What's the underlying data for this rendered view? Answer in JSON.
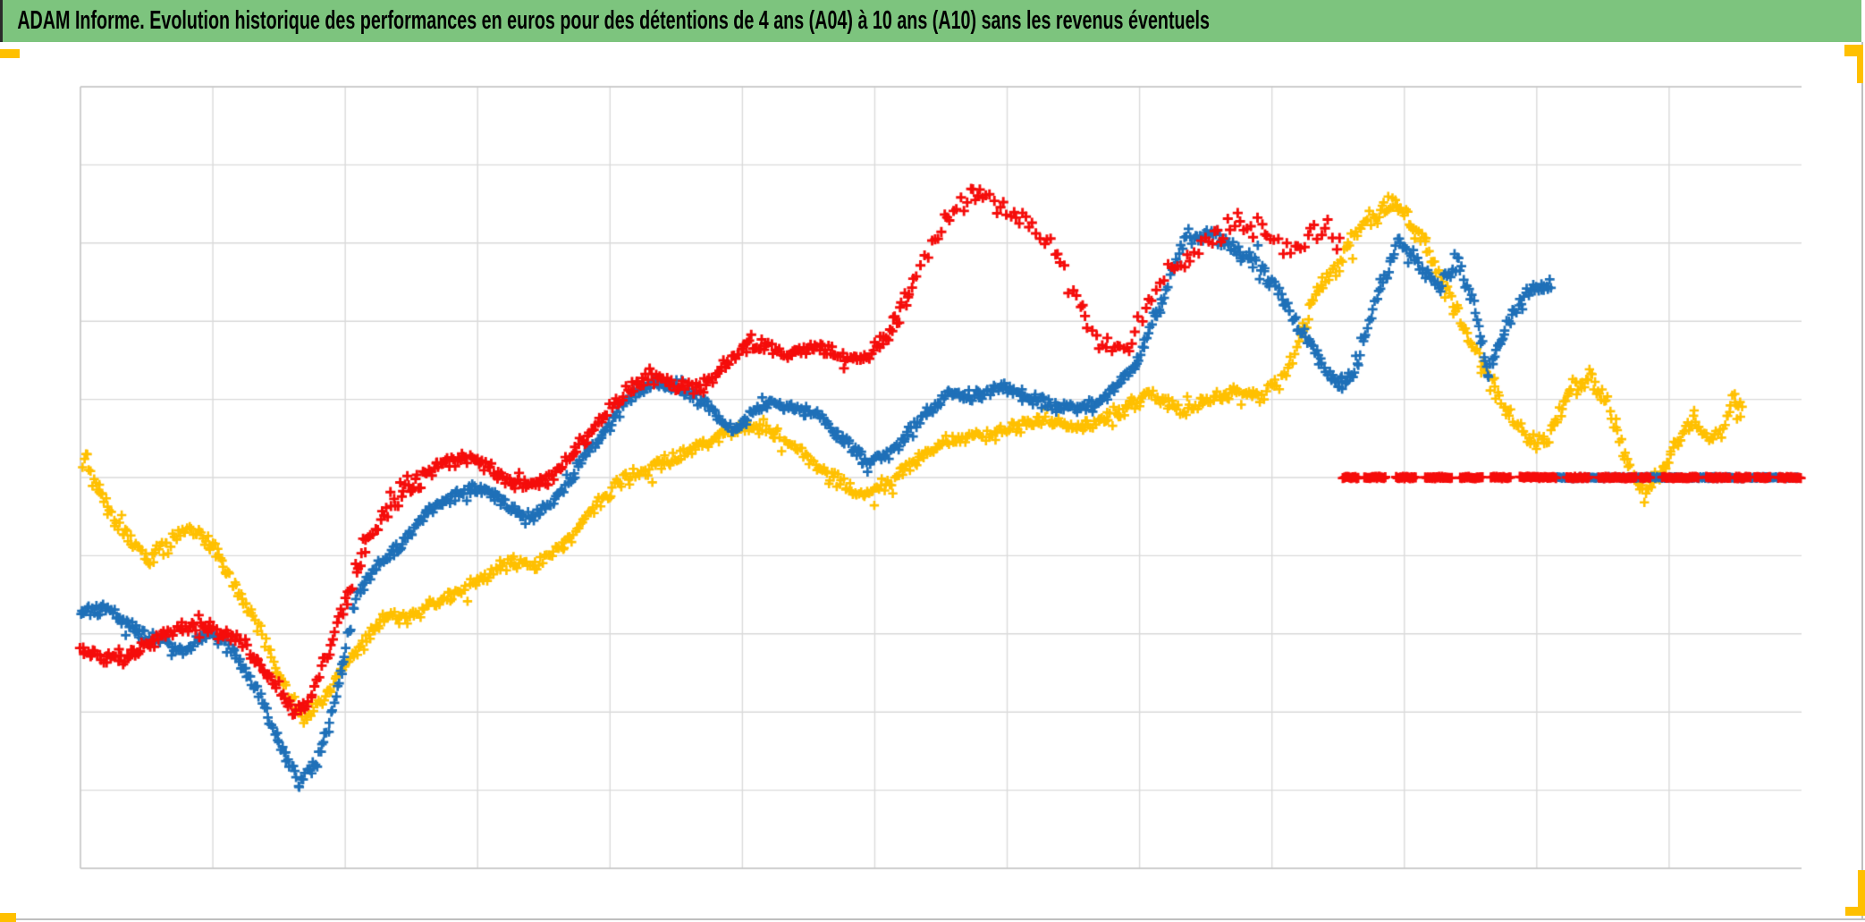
{
  "header": {
    "title": "ADAM Informe. Evolution historique des performances en euros pour des détentions de 4 ans (A04) à 10 ans (A10) sans les revenus éventuels",
    "background_color": "#7DC47E",
    "text_color": "#000000"
  },
  "accents": {
    "color": "#FFC000",
    "positions": [
      "top-left",
      "top-right",
      "bottom-left",
      "bottom-right"
    ]
  },
  "chart_data": {
    "type": "scatter",
    "title": "ADAM Informe. Evolution historique des performances en euros pour des détentions de 4 ans (A04) à 10 ans (A10) sans les revenus éventuels",
    "xlabel": "",
    "ylabel": "",
    "axes_note": "no tick labels visible; y expressed in gridline units (0 = bottom line, 10 = top line); x as fraction 0-1 of plot width",
    "grid": {
      "vertical_lines": 13,
      "horizontal_lines": 11,
      "color": "#DADADA",
      "border_color": "#C6C6C6"
    },
    "marker": "plus",
    "legend_visible": false,
    "flat_line_y_units": 5.0,
    "series": [
      {
        "name": "serie-jaune",
        "color": "#FFC000",
        "spread": 14,
        "step": 1.8,
        "size": 5.2,
        "lw": 2.6,
        "waypoints": [
          [
            0.001,
            5.27,
            30
          ],
          [
            0.013,
            4.7,
            28
          ],
          [
            0.026,
            4.24,
            24
          ],
          [
            0.039,
            3.9,
            20
          ],
          [
            0.052,
            4.07,
            18
          ],
          [
            0.065,
            4.24,
            16
          ],
          [
            0.078,
            3.96,
            16
          ],
          [
            0.091,
            3.5
          ],
          [
            0.104,
            3.04
          ],
          [
            0.117,
            2.41
          ],
          [
            0.129,
            1.96
          ],
          [
            0.14,
            2.19
          ],
          [
            0.153,
            2.64
          ],
          [
            0.166,
            2.99
          ],
          [
            0.179,
            3.27
          ],
          [
            0.192,
            3.21
          ],
          [
            0.205,
            3.44
          ],
          [
            0.218,
            3.56
          ],
          [
            0.234,
            3.79
          ],
          [
            0.249,
            3.96
          ],
          [
            0.265,
            3.84
          ],
          [
            0.281,
            4.07
          ],
          [
            0.296,
            4.47
          ],
          [
            0.312,
            4.82
          ],
          [
            0.327,
            5.04
          ],
          [
            0.343,
            5.22
          ],
          [
            0.358,
            5.39
          ],
          [
            0.374,
            5.56
          ],
          [
            0.39,
            5.67
          ],
          [
            0.405,
            5.56
          ],
          [
            0.421,
            5.33
          ],
          [
            0.436,
            5.1
          ],
          [
            0.452,
            4.87
          ],
          [
            0.468,
            4.99
          ],
          [
            0.483,
            5.22
          ],
          [
            0.499,
            5.39
          ],
          [
            0.514,
            5.45
          ],
          [
            0.53,
            5.5
          ],
          [
            0.545,
            5.62
          ],
          [
            0.561,
            5.73
          ],
          [
            0.577,
            5.62
          ],
          [
            0.592,
            5.67
          ],
          [
            0.608,
            5.85
          ],
          [
            0.623,
            6.02
          ],
          [
            0.639,
            5.85
          ],
          [
            0.655,
            6.08
          ],
          [
            0.67,
            6.19
          ],
          [
            0.686,
            6.13
          ],
          [
            0.701,
            6.42,
            18
          ],
          [
            0.717,
            7.33,
            22
          ],
          [
            0.732,
            7.79,
            24
          ],
          [
            0.748,
            8.31,
            24
          ],
          [
            0.764,
            8.54,
            22
          ],
          [
            0.779,
            8.08,
            22
          ],
          [
            0.795,
            7.33,
            22
          ],
          [
            0.81,
            6.53,
            20
          ],
          [
            0.826,
            5.85,
            18
          ],
          [
            0.842,
            5.33,
            18
          ],
          [
            0.852,
            5.39,
            16
          ],
          [
            0.865,
            6.02,
            22
          ],
          [
            0.878,
            6.3,
            24
          ],
          [
            0.888,
            5.96,
            20
          ],
          [
            0.899,
            5.27,
            18
          ],
          [
            0.909,
            4.82,
            20
          ],
          [
            0.919,
            5.16,
            18
          ],
          [
            0.93,
            5.62,
            18
          ],
          [
            0.938,
            5.79,
            16
          ],
          [
            0.945,
            5.5,
            16
          ],
          [
            0.953,
            5.62,
            16
          ],
          [
            0.961,
            6.02,
            22
          ],
          [
            0.9665,
            5.85,
            18
          ]
        ],
        "flat_tail": null
      },
      {
        "name": "serie-bleue",
        "color": "#1F70B8",
        "spread": 13,
        "step": 1.7,
        "size": 5.4,
        "lw": 2.7,
        "waypoints": [
          [
            0,
            3.21
          ],
          [
            0.016,
            3.33
          ],
          [
            0.031,
            3.1
          ],
          [
            0.047,
            2.93
          ],
          [
            0.062,
            2.81
          ],
          [
            0.075,
            3.04
          ],
          [
            0.088,
            2.81
          ],
          [
            0.101,
            2.36
          ],
          [
            0.114,
            1.73
          ],
          [
            0.127,
            1.16
          ],
          [
            0.138,
            1.44
          ],
          [
            0.148,
            2.19
          ],
          [
            0.161,
            3.56
          ],
          [
            0.174,
            3.9
          ],
          [
            0.187,
            4.07
          ],
          [
            0.2,
            4.47
          ],
          [
            0.213,
            4.65
          ],
          [
            0.229,
            4.82
          ],
          [
            0.244,
            4.7
          ],
          [
            0.26,
            4.47
          ],
          [
            0.275,
            4.65
          ],
          [
            0.291,
            5.16
          ],
          [
            0.306,
            5.62
          ],
          [
            0.319,
            6.02
          ],
          [
            0.332,
            6.25
          ],
          [
            0.348,
            6.25
          ],
          [
            0.364,
            6.02
          ],
          [
            0.379,
            5.67
          ],
          [
            0.395,
            5.96
          ],
          [
            0.41,
            5.9
          ],
          [
            0.426,
            5.79
          ],
          [
            0.442,
            5.5
          ],
          [
            0.457,
            5.16
          ],
          [
            0.473,
            5.33
          ],
          [
            0.488,
            5.73
          ],
          [
            0.504,
            6.02
          ],
          [
            0.519,
            5.96
          ],
          [
            0.535,
            6.13
          ],
          [
            0.551,
            6.02
          ],
          [
            0.566,
            5.96
          ],
          [
            0.582,
            5.96
          ],
          [
            0.597,
            6.13
          ],
          [
            0.613,
            6.48
          ],
          [
            0.629,
            7.33,
            20
          ],
          [
            0.642,
            8.08,
            22
          ],
          [
            0.655,
            8.13,
            20
          ],
          [
            0.67,
            8.02,
            20
          ],
          [
            0.686,
            7.73,
            18
          ],
          [
            0.701,
            7.16,
            18
          ],
          [
            0.717,
            6.53,
            18
          ],
          [
            0.73,
            6.08,
            18
          ],
          [
            0.74,
            6.19,
            16
          ],
          [
            0.753,
            7.22,
            18
          ],
          [
            0.766,
            7.91,
            20
          ],
          [
            0.779,
            7.68,
            20
          ],
          [
            0.79,
            7.45,
            18
          ],
          [
            0.8,
            7.85,
            20
          ],
          [
            0.81,
            7.22,
            18
          ],
          [
            0.818,
            6.36,
            16
          ],
          [
            0.829,
            6.99,
            18
          ],
          [
            0.839,
            7.33,
            18
          ],
          [
            0.8545,
            7.5,
            18
          ]
        ],
        "flat_tail": {
          "x_start": 0.858,
          "x_end": 1.0,
          "y": 5.0,
          "style": "solid"
        }
      },
      {
        "name": "serie-rouge",
        "color": "#F50D0B",
        "spread": 14,
        "step": 2.1,
        "size": 5.6,
        "lw": 2.9,
        "sparse": [
          0.485,
          0.735,
          1.8
        ],
        "waypoints": [
          [
            0,
            2.7
          ],
          [
            0.021,
            2.59
          ],
          [
            0.042,
            2.93
          ],
          [
            0.06,
            3.16
          ],
          [
            0.078,
            3.1
          ],
          [
            0.094,
            2.93
          ],
          [
            0.109,
            2.47
          ],
          [
            0.125,
            2.01
          ],
          [
            0.135,
            2.3
          ],
          [
            0.148,
            3.1
          ],
          [
            0.164,
            4.19,
            26
          ],
          [
            0.179,
            4.7,
            30
          ],
          [
            0.195,
            4.87,
            24
          ],
          [
            0.21,
            5.1,
            16
          ],
          [
            0.226,
            5.16,
            14
          ],
          [
            0.242,
            4.99,
            14
          ],
          [
            0.257,
            4.87
          ],
          [
            0.273,
            4.99
          ],
          [
            0.288,
            5.33
          ],
          [
            0.304,
            5.73
          ],
          [
            0.319,
            6.13
          ],
          [
            0.332,
            6.3,
            22
          ],
          [
            0.345,
            6.19
          ],
          [
            0.361,
            6.25
          ],
          [
            0.377,
            6.59
          ],
          [
            0.392,
            6.93,
            30
          ],
          [
            0.408,
            6.59
          ],
          [
            0.423,
            6.65
          ],
          [
            0.439,
            6.53
          ],
          [
            0.455,
            6.48
          ],
          [
            0.47,
            6.82
          ],
          [
            0.486,
            7.56,
            26
          ],
          [
            0.501,
            8.19,
            26
          ],
          [
            0.517,
            8.54,
            24
          ],
          [
            0.532,
            8.36,
            22
          ],
          [
            0.548,
            8.25,
            22
          ],
          [
            0.564,
            7.96,
            22
          ],
          [
            0.579,
            7.33,
            26
          ],
          [
            0.595,
            6.76,
            22
          ],
          [
            0.61,
            6.82,
            22
          ],
          [
            0.626,
            7.62,
            24
          ],
          [
            0.642,
            7.79,
            22
          ],
          [
            0.657,
            8.08,
            22
          ],
          [
            0.673,
            8.31,
            24
          ],
          [
            0.688,
            8.19,
            24
          ],
          [
            0.704,
            7.96,
            26
          ],
          [
            0.719,
            8.08,
            24
          ],
          [
            0.7335,
            7.91,
            22
          ]
        ],
        "flat_tail": {
          "x_start": 0.7335,
          "x_end": 1.0,
          "y": 5.0,
          "style": "dashed_runs"
        }
      }
    ]
  }
}
